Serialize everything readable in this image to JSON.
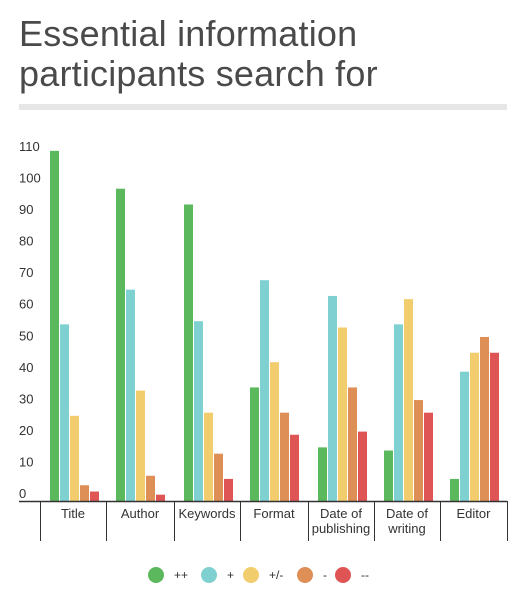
{
  "title": "Essential information participants search for",
  "chart_data": {
    "type": "bar",
    "title": "Essential information participants search for",
    "xlabel": "",
    "ylabel": "",
    "ylim": [
      0,
      110
    ],
    "yticks": [
      0,
      10,
      20,
      30,
      40,
      50,
      60,
      70,
      80,
      90,
      100,
      110
    ],
    "grid": false,
    "legend": "bottom",
    "categories": [
      [
        "Title"
      ],
      [
        "Author"
      ],
      [
        "Keywords"
      ],
      [
        "Format"
      ],
      [
        "Date of",
        "publishing"
      ],
      [
        "Date of",
        "writing"
      ],
      [
        "Editor"
      ]
    ],
    "series": [
      {
        "name": "++",
        "color": "#5cb85c",
        "values": [
          111,
          99,
          94,
          36,
          17,
          16,
          7
        ]
      },
      {
        "name": "+",
        "color": "#7fd1d1",
        "values": [
          56,
          67,
          57,
          70,
          65,
          56,
          41
        ]
      },
      {
        "name": "+/-",
        "color": "#f2cd6e",
        "values": [
          27,
          35,
          28,
          44,
          55,
          64,
          47
        ]
      },
      {
        "name": "-",
        "color": "#de8f55",
        "values": [
          5,
          8,
          15,
          28,
          36,
          32,
          52
        ]
      },
      {
        "name": "--",
        "color": "#df5454",
        "values": [
          3,
          2,
          7,
          21,
          22,
          28,
          47
        ]
      }
    ]
  }
}
